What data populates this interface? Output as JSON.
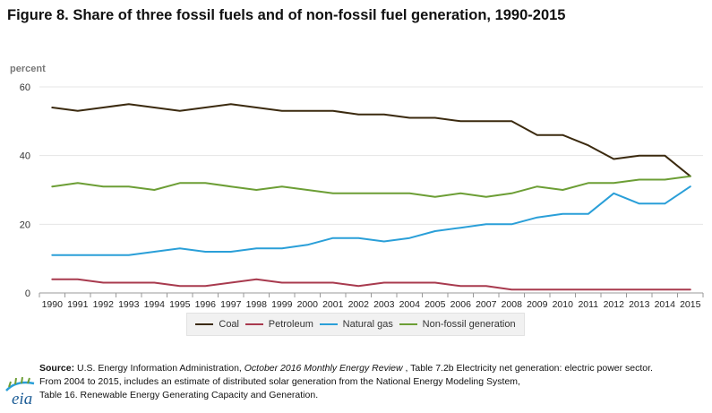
{
  "title": "Figure 8. Share of three fossil fuels and of non-fossil fuel generation, 1990-2015",
  "colors": {
    "coal": "#3b2a0f",
    "petroleum": "#a83a4e",
    "gas": "#2a9fd8",
    "nonfossil": "#6c9e35",
    "grid": "#e4e4e4"
  },
  "chart_data": {
    "type": "line",
    "ylabel": "percent",
    "xlabel": "",
    "ylim": [
      0,
      60
    ],
    "yticks": [
      0,
      20,
      40,
      60
    ],
    "grid": true,
    "legend_position": "bottom-center",
    "x": [
      "1990",
      "1991",
      "1992",
      "1993",
      "1994",
      "1995",
      "1996",
      "1997",
      "1998",
      "1999",
      "2000",
      "2001",
      "2002",
      "2003",
      "2004",
      "2005",
      "2006",
      "2007",
      "2008",
      "2009",
      "2010",
      "2011",
      "2012",
      "2013",
      "2014",
      "2015"
    ],
    "series": [
      {
        "name": "Coal",
        "color": "#3b2a0f",
        "values": [
          54,
          53,
          54,
          55,
          54,
          53,
          54,
          55,
          54,
          53,
          53,
          53,
          52,
          52,
          51,
          51,
          50,
          50,
          50,
          46,
          46,
          43,
          39,
          40,
          40,
          34
        ]
      },
      {
        "name": "Petroleum",
        "color": "#a83a4e",
        "values": [
          4,
          4,
          3,
          3,
          3,
          2,
          2,
          3,
          4,
          3,
          3,
          3,
          2,
          3,
          3,
          3,
          2,
          2,
          1,
          1,
          1,
          1,
          1,
          1,
          1,
          1
        ]
      },
      {
        "name": "Natural gas",
        "color": "#2a9fd8",
        "values": [
          11,
          11,
          11,
          11,
          12,
          13,
          12,
          12,
          13,
          13,
          14,
          16,
          16,
          15,
          16,
          18,
          19,
          20,
          20,
          22,
          23,
          23,
          29,
          26,
          26,
          31
        ]
      },
      {
        "name": "Non-fossil generation",
        "color": "#6c9e35",
        "values": [
          31,
          32,
          31,
          31,
          30,
          32,
          32,
          31,
          30,
          31,
          30,
          29,
          29,
          29,
          29,
          28,
          29,
          28,
          29,
          31,
          30,
          32,
          32,
          33,
          33,
          34
        ]
      }
    ]
  },
  "source": {
    "label": "Source:",
    "text_before": "U.S. Energy Information Administration, ",
    "publication": "October 2016 Monthly Energy Review",
    "text_after": " , Table 7.2b Electricity net generation: electric power sector.",
    "line2": "From 2004 to 2015, includes an estimate of distributed solar generation from the National Energy Modeling System,",
    "line3": "Table 16. Renewable Energy Generating Capacity and Generation."
  },
  "logo": {
    "text": "eia"
  }
}
